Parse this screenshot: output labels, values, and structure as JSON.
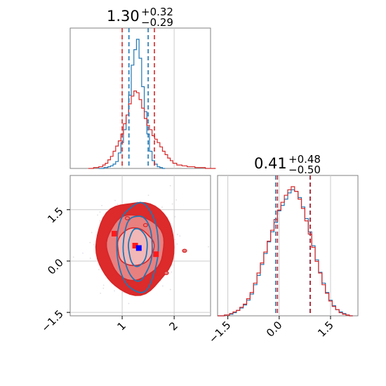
{
  "colors": {
    "blue": "#1f77b4",
    "red": "#d62728",
    "red_fill_outer": "#f2b7b7",
    "red_fill_mid": "#e88080",
    "red_fill_inner": "#dd2a2a",
    "grid": "#cccccc",
    "frame": "#808080"
  },
  "chart_data": [
    {
      "name": "hist-param-1",
      "type": "histogram",
      "title": {
        "value": "1.30",
        "plus": "+0.32",
        "minus": "−0.29"
      },
      "xlim": [
        0.0,
        2.7
      ],
      "grid": true,
      "series": [
        {
          "name": "",
          "color": "#1f77b4",
          "bin_centers": [
            0.6,
            0.7,
            0.75,
            0.8,
            0.85,
            0.9,
            0.95,
            1.0,
            1.05,
            1.1,
            1.15,
            1.2,
            1.25,
            1.3,
            1.35,
            1.4,
            1.45,
            1.5,
            1.55,
            1.6,
            1.65,
            1.7,
            1.75,
            1.8
          ],
          "counts": [
            0,
            1,
            2,
            3,
            5,
            8,
            18,
            30,
            45,
            62,
            85,
            120,
            138,
            150,
            128,
            95,
            66,
            40,
            20,
            9,
            5,
            2,
            1,
            0
          ],
          "quantile_lines": [
            1.13,
            1.5
          ]
        },
        {
          "name": "",
          "color": "#d62728",
          "bin_centers": [
            0.4,
            0.5,
            0.6,
            0.65,
            0.7,
            0.75,
            0.8,
            0.85,
            0.9,
            0.95,
            1.0,
            1.05,
            1.1,
            1.15,
            1.2,
            1.25,
            1.3,
            1.35,
            1.4,
            1.45,
            1.5,
            1.55,
            1.6,
            1.65,
            1.7,
            1.75,
            1.8,
            1.85,
            1.9,
            1.95,
            2.0,
            2.1,
            2.2,
            2.3,
            2.5,
            2.7
          ],
          "counts": [
            0,
            1,
            2,
            4,
            6,
            10,
            14,
            20,
            26,
            32,
            40,
            52,
            62,
            75,
            84,
            90,
            88,
            80,
            70,
            58,
            50,
            45,
            38,
            34,
            30,
            25,
            20,
            16,
            12,
            9,
            6,
            4,
            3,
            2,
            1,
            0
          ],
          "quantile_lines": [
            1.0,
            1.62
          ]
        }
      ]
    },
    {
      "name": "hist-param-2",
      "type": "histogram",
      "title": {
        "value": "0.41",
        "plus": "+0.48",
        "minus": "−0.50"
      },
      "xlim": [
        -1.8,
        2.3
      ],
      "xticks": [
        -1.5,
        0.0,
        1.5
      ],
      "xtick_labels": [
        "−1.5",
        "0.0",
        "1.5"
      ],
      "grid": true,
      "series": [
        {
          "name": "",
          "color": "#1f77b4",
          "bin_centers": [
            -1.7,
            -1.5,
            -1.4,
            -1.3,
            -1.2,
            -1.1,
            -1.0,
            -0.9,
            -0.8,
            -0.7,
            -0.6,
            -0.5,
            -0.4,
            -0.3,
            -0.2,
            -0.1,
            0.0,
            0.1,
            0.2,
            0.3,
            0.4,
            0.5,
            0.6,
            0.7,
            0.8,
            0.9,
            1.0,
            1.1,
            1.2,
            1.3,
            1.4,
            1.5,
            1.6,
            1.7,
            1.8,
            1.9,
            2.0,
            2.1
          ],
          "counts": [
            0,
            1,
            2,
            4,
            7,
            10,
            14,
            20,
            28,
            40,
            52,
            66,
            80,
            95,
            108,
            120,
            135,
            142,
            150,
            158,
            162,
            160,
            152,
            140,
            125,
            108,
            90,
            72,
            56,
            42,
            30,
            20,
            13,
            8,
            5,
            3,
            1,
            0
          ],
          "quantile_lines": [
            -0.1,
            0.9
          ]
        },
        {
          "name": "",
          "color": "#d62728",
          "bin_centers": [
            -1.7,
            -1.5,
            -1.4,
            -1.3,
            -1.2,
            -1.1,
            -1.0,
            -0.9,
            -0.8,
            -0.7,
            -0.6,
            -0.5,
            -0.4,
            -0.3,
            -0.2,
            -0.1,
            0.0,
            0.1,
            0.2,
            0.3,
            0.4,
            0.5,
            0.6,
            0.7,
            0.8,
            0.9,
            1.0,
            1.1,
            1.2,
            1.3,
            1.4,
            1.5,
            1.6,
            1.7,
            1.8,
            1.9,
            2.0,
            2.1
          ],
          "counts": [
            0,
            1,
            3,
            5,
            7,
            11,
            15,
            22,
            30,
            42,
            55,
            68,
            82,
            96,
            110,
            124,
            136,
            146,
            155,
            162,
            166,
            160,
            150,
            138,
            122,
            105,
            88,
            70,
            55,
            40,
            29,
            19,
            12,
            8,
            4,
            2,
            1,
            0
          ],
          "quantile_lines": [
            -0.05,
            0.91
          ]
        }
      ]
    },
    {
      "name": "joint-param-1-param-2",
      "type": "contour",
      "xlim": [
        0.0,
        2.7
      ],
      "ylim": [
        -1.6,
        2.5
      ],
      "xticks": [
        1,
        2
      ],
      "xtick_labels": [
        "1",
        "2"
      ],
      "yticks": [
        -1.5,
        0.0,
        1.5
      ],
      "ytick_labels": [
        "−1.5",
        "0.0",
        "1.5"
      ],
      "grid": true,
      "series": [
        {
          "name": "",
          "color": "#d62728",
          "center": [
            1.25,
            0.41
          ],
          "contour_radii": [
            [
              0.35,
              0.55
            ],
            [
              0.55,
              0.95
            ],
            [
              0.75,
              1.35
            ]
          ],
          "filled": true,
          "markers": [
            [
              1.25,
              0.45
            ],
            [
              0.85,
              0.8
            ],
            [
              1.65,
              0.2
            ]
          ]
        },
        {
          "name": "",
          "color": "#1f77b4",
          "center": [
            1.3,
            0.4
          ],
          "contour_radii": [
            [
              0.18,
              0.55
            ],
            [
              0.28,
              0.95
            ],
            [
              0.4,
              1.3
            ]
          ],
          "filled": false,
          "markers": [
            [
              1.32,
              0.38
            ]
          ]
        }
      ]
    }
  ]
}
